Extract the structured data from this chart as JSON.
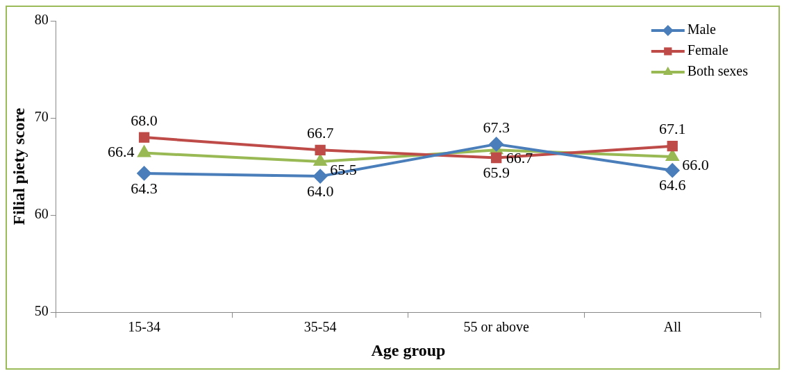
{
  "chart_data": {
    "type": "line",
    "xlabel": "Age group",
    "ylabel": "Filial piety score",
    "categories": [
      "15-34",
      "35-54",
      "55 or above",
      "All"
    ],
    "series": [
      {
        "name": "Male",
        "color": "#4a7ebb",
        "marker": "diamond",
        "values": [
          64.3,
          64.0,
          67.3,
          64.6
        ],
        "value_labels": [
          "64.3",
          "64.0",
          "67.3",
          "64.6"
        ]
      },
      {
        "name": "Female",
        "color": "#be4b48",
        "marker": "square",
        "values": [
          68.0,
          66.7,
          65.9,
          67.1
        ],
        "value_labels": [
          "68.0",
          "66.7",
          "65.9",
          "67.1"
        ]
      },
      {
        "name": "Both sexes",
        "color": "#98b954",
        "marker": "triangle",
        "values": [
          66.4,
          65.5,
          66.7,
          66.0
        ],
        "value_labels": [
          "66.4",
          "65.5",
          "66.7",
          "66.0"
        ]
      }
    ],
    "ylim": [
      50,
      80
    ],
    "yticks": [
      50,
      60,
      70,
      80
    ],
    "grid": false,
    "legend": "top right",
    "line_style": "solid"
  }
}
